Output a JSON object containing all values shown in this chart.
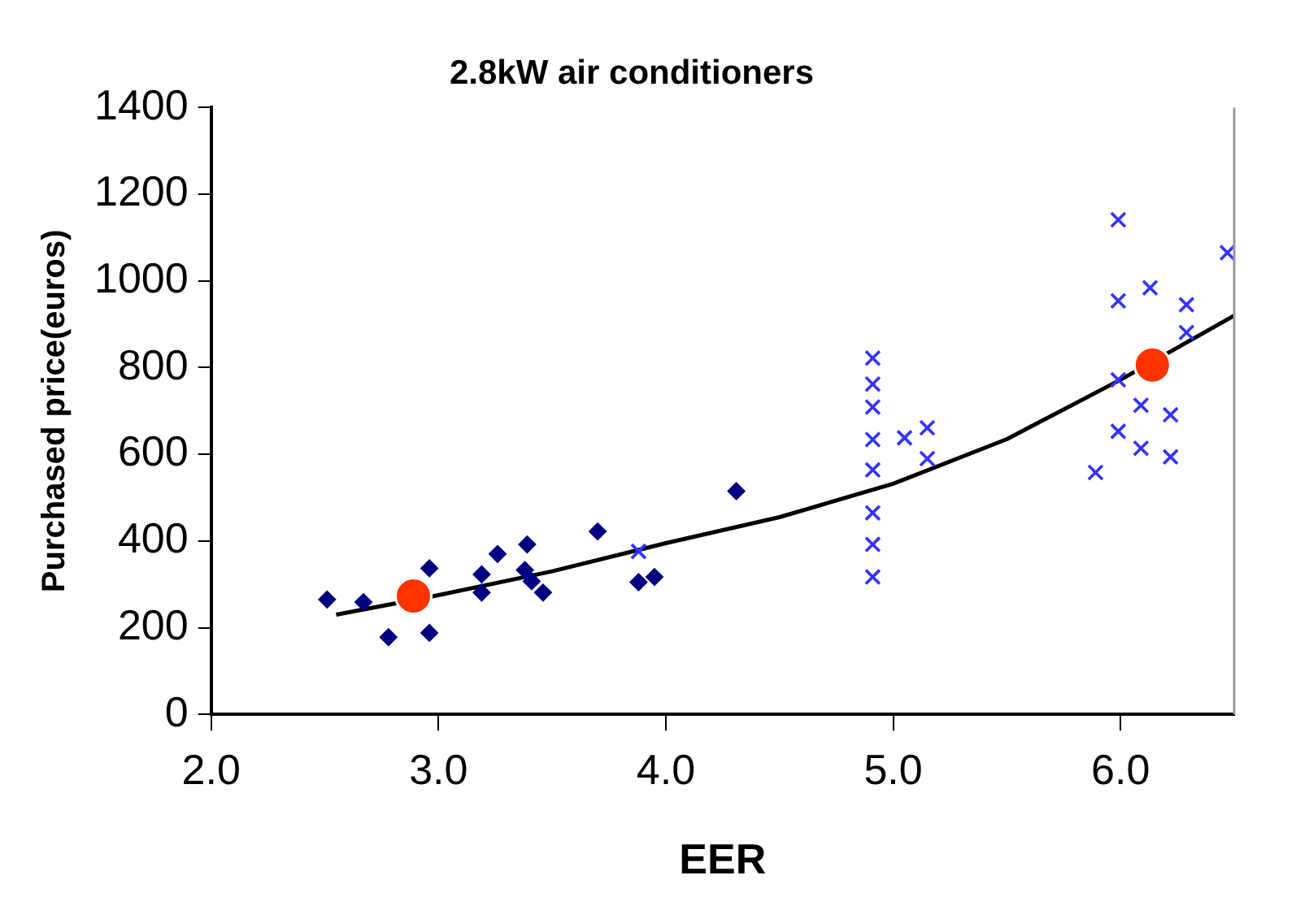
{
  "chart_data": {
    "type": "scatter",
    "title": "2.8kW air conditioners",
    "xlabel": "EER",
    "ylabel": "Purchased price(euros)",
    "xlim": [
      2,
      6.5
    ],
    "xticks": [
      {
        "value": 2,
        "label": "2.0"
      },
      {
        "value": 3,
        "label": "3.0"
      },
      {
        "value": 4,
        "label": "4.0"
      },
      {
        "value": 5,
        "label": "5.0"
      },
      {
        "value": 6,
        "label": "6.0"
      }
    ],
    "ylim": [
      0,
      1400
    ],
    "yticks": [
      0,
      200,
      400,
      600,
      800,
      1000,
      1200,
      1400
    ],
    "grid": false,
    "legend": false,
    "series": [
      {
        "type": "line",
        "color": "#000000",
        "marker": "none",
        "line_style": "solid",
        "x": [
          2.55,
          3.0,
          3.5,
          4.0,
          4.5,
          5.0,
          5.5,
          6.0,
          6.5
        ],
        "values": [
          230,
          275,
          330,
          395,
          455,
          532,
          635,
          772,
          920
        ]
      },
      {
        "type": "scatter",
        "color": "#000080",
        "marker": "diamond",
        "x": [
          2.51,
          2.67,
          2.78,
          2.96,
          2.96,
          3.19,
          3.19,
          3.26,
          3.39,
          3.38,
          3.41,
          3.46,
          3.7,
          3.88,
          3.95,
          4.31
        ],
        "values": [
          265,
          259,
          178,
          337,
          188,
          323,
          281,
          370,
          392,
          333,
          307,
          281,
          422,
          305,
          317,
          515
        ]
      },
      {
        "type": "scatter",
        "color": "#3333ff",
        "marker": "cross",
        "x": [
          3.88,
          4.91,
          4.91,
          4.91,
          4.91,
          4.91,
          4.91,
          4.91,
          4.91,
          5.05,
          5.15,
          5.15,
          5.89,
          5.99,
          5.99,
          5.99,
          5.99,
          6.09,
          6.09,
          6.13,
          6.22,
          6.22,
          6.29,
          6.29,
          6.47
        ],
        "values": [
          376,
          822,
          762,
          709,
          634,
          564,
          465,
          392,
          317,
          638,
          661,
          590,
          558,
          1141,
          954,
          772,
          653,
          713,
          614,
          984,
          691,
          594,
          945,
          881,
          1065
        ]
      },
      {
        "type": "scatter",
        "color": "#ff3300",
        "marker": "circle",
        "x": [
          2.89,
          6.14
        ],
        "values": [
          273,
          806
        ]
      }
    ]
  }
}
